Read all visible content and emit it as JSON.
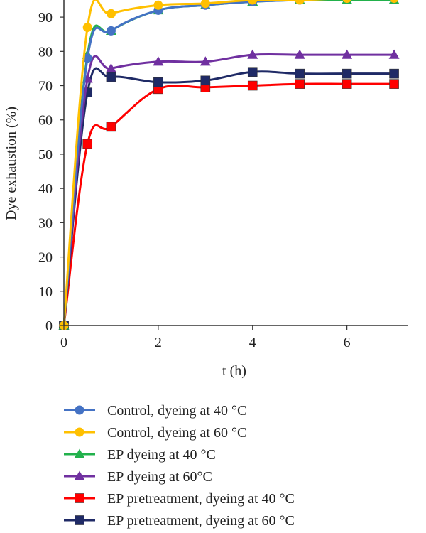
{
  "chart_data": {
    "type": "line",
    "xlabel": "t (h)",
    "ylabel": "Dye exhaustion (%)",
    "xlim": [
      0,
      7.3
    ],
    "ylim": [
      0,
      95
    ],
    "xticks": [
      0,
      2,
      4,
      6
    ],
    "yticks": [
      0,
      10,
      20,
      30,
      40,
      50,
      60,
      70,
      80,
      90
    ],
    "grid": false,
    "legend_position": "bottom",
    "x": [
      0,
      0.5,
      1,
      2,
      3,
      4,
      5,
      6,
      7
    ],
    "series": [
      {
        "name": "Control, dyeing at 40 °C",
        "color": "#4472C4",
        "marker": "circle",
        "values": [
          0,
          78,
          86,
          92,
          93.5,
          94.5,
          95,
          95.5,
          95.5
        ]
      },
      {
        "name": "Control, dyeing at 60 °C",
        "color": "#FFC000",
        "marker": "circle",
        "values": [
          0,
          87,
          91,
          93.5,
          94,
          95,
          95,
          95.5,
          95.5
        ]
      },
      {
        "name": "EP dyeing at 40 °C",
        "color": "#22B14C",
        "marker": "triangle",
        "values": [
          0,
          79,
          86,
          92,
          93.5,
          94.5,
          95,
          95,
          95
        ]
      },
      {
        "name": "EP dyeing at 60°C",
        "color": "#7030A0",
        "marker": "triangle",
        "values": [
          0,
          72,
          75,
          77,
          77,
          79,
          79,
          79,
          79
        ]
      },
      {
        "name": "EP pretreatment, dyeing at 40 °C",
        "color": "#FF0000",
        "marker": "square",
        "values": [
          0,
          53,
          58,
          69,
          69.5,
          70,
          70.5,
          70.5,
          70.5
        ]
      },
      {
        "name": "EP pretreatment, dyeing at 60 °C",
        "color": "#1F2A66",
        "marker": "square",
        "values": [
          0,
          68,
          72.5,
          71,
          71.5,
          74,
          73.5,
          73.5,
          73.5
        ]
      }
    ]
  }
}
